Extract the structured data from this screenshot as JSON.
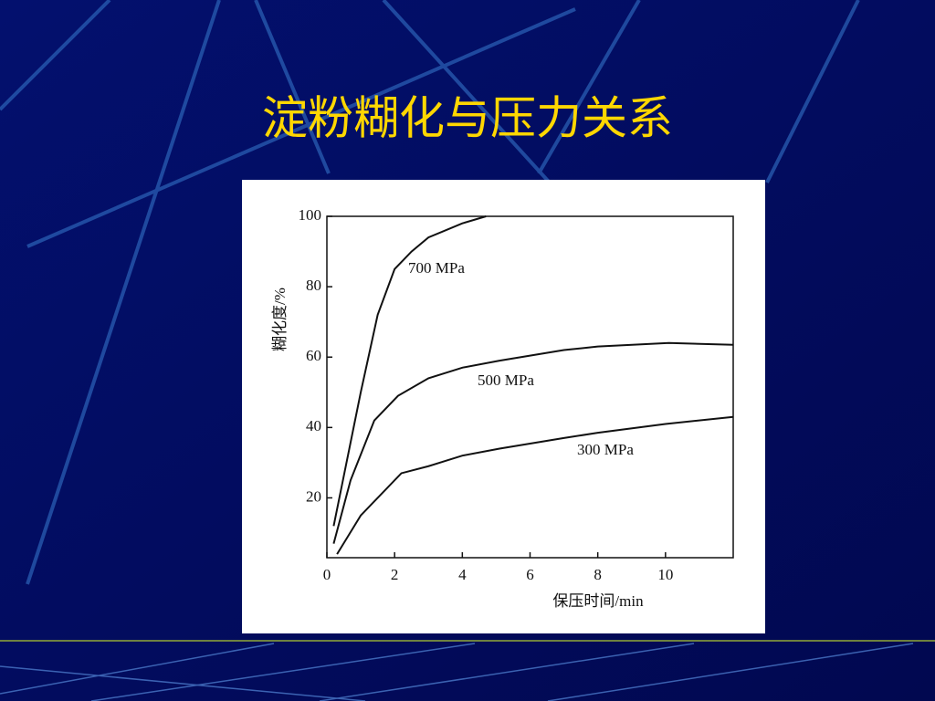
{
  "chart_data": {
    "type": "line",
    "title": "淀粉糊化与压力关系",
    "x_label": "保压时间/min",
    "y_label": "糊化度/%",
    "xlim": [
      0,
      12
    ],
    "xticks": [
      0,
      2,
      4,
      6,
      8,
      10
    ],
    "ylim": [
      3,
      100
    ],
    "yticks": [
      20,
      40,
      60,
      80,
      100
    ],
    "series": [
      {
        "name": "700 MPa",
        "color": "#111111",
        "x": [
          0.2,
          1,
          1.5,
          2,
          2.5,
          3,
          4,
          4.7
        ],
        "values": [
          12,
          50,
          72,
          85,
          90,
          94,
          98,
          100
        ]
      },
      {
        "name": "500 MPa",
        "color": "#111111",
        "x": [
          0.2,
          0.7,
          1.4,
          2.1,
          3,
          4,
          5.1,
          7,
          8,
          10.1,
          12
        ],
        "values": [
          7,
          25,
          42,
          49,
          54,
          57,
          59,
          62,
          63,
          64,
          63.5
        ]
      },
      {
        "name": "300 MPa",
        "color": "#111111",
        "x": [
          0.3,
          1,
          2.2,
          3,
          4,
          5.1,
          7,
          8,
          10,
          12
        ],
        "values": [
          4,
          15,
          27,
          29,
          32,
          34,
          37,
          38.5,
          41,
          43
        ]
      }
    ]
  }
}
